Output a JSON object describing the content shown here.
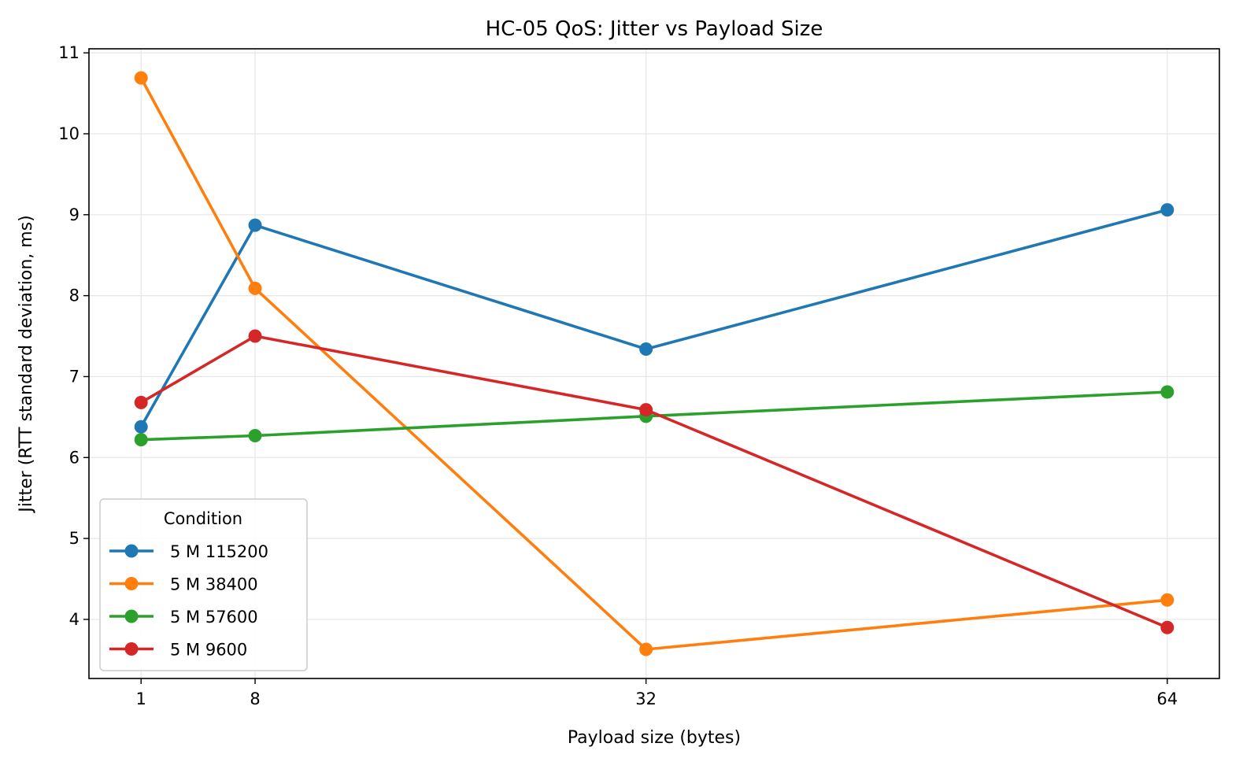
{
  "chart_data": {
    "type": "line",
    "title": "HC-05 QoS: Jitter vs Payload Size",
    "xlabel": "Payload size (bytes)",
    "ylabel": "Jitter (RTT standard deviation, ms)",
    "x": [
      1,
      8,
      32,
      64
    ],
    "x_tick_labels": [
      "1",
      "8",
      "32",
      "64"
    ],
    "y_ticks": [
      4,
      5,
      6,
      7,
      8,
      9,
      10,
      11
    ],
    "y_tick_labels": [
      "4",
      "5",
      "6",
      "7",
      "8",
      "9",
      "10",
      "11"
    ],
    "xlim": [
      -2.2,
      67.2
    ],
    "ylim": [
      3.27,
      11.05
    ],
    "grid": true,
    "legend": {
      "title": "Condition",
      "position": "lower-left"
    },
    "series": [
      {
        "name": "5 M 115200",
        "color": "#1f77b4",
        "values": [
          6.38,
          8.87,
          7.34,
          9.06
        ]
      },
      {
        "name": "5 M 38400",
        "color": "#ff7f0e",
        "values": [
          10.69,
          8.09,
          3.63,
          4.24
        ]
      },
      {
        "name": "5 M 57600",
        "color": "#2ca02c",
        "values": [
          6.22,
          6.27,
          6.51,
          6.81
        ]
      },
      {
        "name": "5 M 9600",
        "color": "#d62728",
        "values": [
          6.68,
          7.5,
          6.59,
          3.9
        ]
      }
    ]
  }
}
